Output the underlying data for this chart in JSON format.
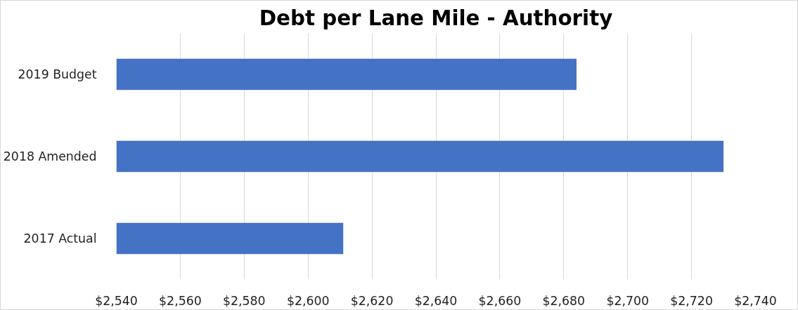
{
  "chart_data": {
    "type": "bar",
    "orientation": "horizontal",
    "title": "Debt per Lane Mile - Authority",
    "categories": [
      "2019 Budget",
      "2018 Amended",
      "2017 Actual"
    ],
    "values": [
      2684,
      2730,
      2611
    ],
    "color": "#4472c4",
    "xlim": [
      2540,
      2740
    ],
    "xticks": [
      {
        "value": 2540,
        "label": "$2,540"
      },
      {
        "value": 2560,
        "label": "$2,560"
      },
      {
        "value": 2580,
        "label": "$2,580"
      },
      {
        "value": 2600,
        "label": "$2,600"
      },
      {
        "value": 2620,
        "label": "$2,620"
      },
      {
        "value": 2640,
        "label": "$2,640"
      },
      {
        "value": 2660,
        "label": "$2,660"
      },
      {
        "value": 2680,
        "label": "$2,680"
      },
      {
        "value": 2700,
        "label": "$2,700"
      },
      {
        "value": 2720,
        "label": "$2,720"
      },
      {
        "value": 2740,
        "label": "$2,740"
      }
    ],
    "grid": "x"
  }
}
